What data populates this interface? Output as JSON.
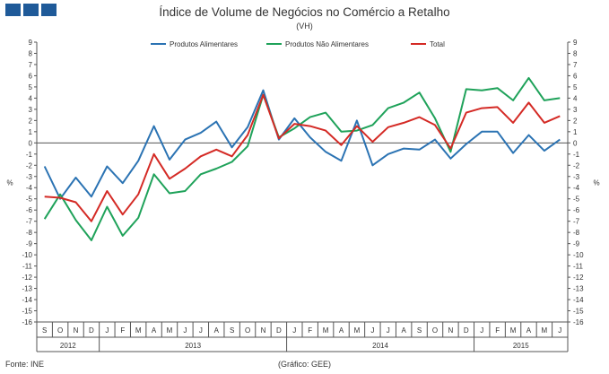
{
  "logo": {
    "squares": 3,
    "color": "#1f5a99"
  },
  "chart_data": {
    "type": "line",
    "title": "Índice de Volume de Negócios no Comércio a Retalho",
    "subtitle": "(VH)",
    "ylabel_left": "%",
    "ylabel_right": "%",
    "ylim": [
      -16,
      9
    ],
    "yticks": [
      9,
      8,
      7,
      6,
      5,
      4,
      3,
      2,
      1,
      0,
      -1,
      -2,
      -3,
      -4,
      -5,
      -6,
      -7,
      -8,
      -9,
      -10,
      -11,
      -12,
      -13,
      -14,
      -15,
      -16
    ],
    "grid": false,
    "legend_position": "top-center",
    "months": [
      "S",
      "O",
      "N",
      "D",
      "J",
      "F",
      "M",
      "A",
      "M",
      "J",
      "J",
      "A",
      "S",
      "O",
      "N",
      "D",
      "J",
      "F",
      "M",
      "A",
      "M",
      "J",
      "J",
      "A",
      "S",
      "O",
      "N",
      "D",
      "J",
      "F",
      "M",
      "A",
      "M",
      "J"
    ],
    "years": [
      {
        "label": "2012",
        "start": 0,
        "end": 4
      },
      {
        "label": "2013",
        "start": 4,
        "end": 16
      },
      {
        "label": "2014",
        "start": 16,
        "end": 28
      },
      {
        "label": "2015",
        "start": 28,
        "end": 34
      }
    ],
    "series": [
      {
        "name": "Produtos Alimentares",
        "color": "#2b73b3",
        "values": [
          -2.1,
          -5.0,
          -3.1,
          -4.8,
          -2.1,
          -3.6,
          -1.6,
          1.5,
          -1.5,
          0.3,
          0.9,
          1.9,
          -0.4,
          1.4,
          4.7,
          0.3,
          2.2,
          0.5,
          -0.8,
          -1.6,
          2.0,
          -2.0,
          -1.0,
          -0.5,
          -0.6,
          0.3,
          -1.4,
          -0.1,
          1.0,
          1.0,
          -0.9,
          0.7,
          -0.7,
          0.3
        ]
      },
      {
        "name": "Produtos Não Alimentares",
        "color": "#1fa25a",
        "values": [
          -6.8,
          -4.6,
          -6.9,
          -8.7,
          -5.7,
          -8.3,
          -6.7,
          -2.8,
          -4.5,
          -4.3,
          -2.8,
          -2.3,
          -1.7,
          -0.3,
          4.3,
          0.5,
          1.3,
          2.3,
          2.7,
          1.0,
          1.1,
          1.6,
          3.1,
          3.6,
          4.5,
          2.2,
          -0.8,
          4.8,
          4.7,
          4.9,
          3.8,
          5.8,
          3.8,
          4.0
        ]
      },
      {
        "name": "Total",
        "color": "#d42a25",
        "values": [
          -4.8,
          -4.9,
          -5.3,
          -7.0,
          -4.3,
          -6.4,
          -4.6,
          -1.0,
          -3.2,
          -2.3,
          -1.2,
          -0.6,
          -1.2,
          0.7,
          4.3,
          0.4,
          1.7,
          1.5,
          1.1,
          -0.2,
          1.5,
          0.1,
          1.4,
          1.8,
          2.3,
          1.6,
          -0.5,
          2.7,
          3.1,
          3.2,
          1.8,
          3.6,
          1.8,
          2.4
        ]
      }
    ]
  },
  "footer": {
    "source": "Fonte: INE",
    "credit": "(Gráfico: GEE)"
  }
}
